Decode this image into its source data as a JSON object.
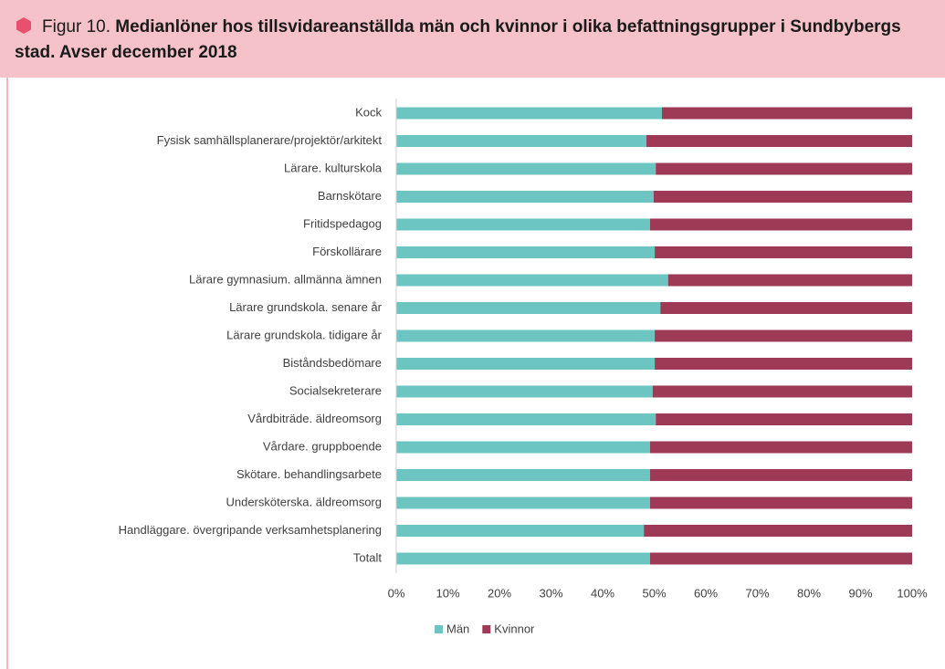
{
  "chart_data": {
    "type": "stacked_barh",
    "label": "Figur 10.",
    "title": "Medianlöner hos tillsvidareanställda män och kvinnor i olika befattningsgrupper i Sundbybergs stad. Avser december 2018",
    "categories": [
      "Kock",
      "Fysisk  samhällsplanerare/projektör/arkitekt",
      "Lärare. kulturskola",
      "Barnskötare",
      "Fritidspedagog",
      "Förskollärare",
      "Lärare gymnasium. allmänna ämnen",
      "Lärare grundskola. senare år",
      "Lärare grundskola. tidigare år",
      "Biståndsbedömare",
      "Socialsekreterare",
      "Vårdbiträde. äldreomsorg",
      "Vårdare. gruppboende",
      "Skötare. behandlingsarbete",
      "Undersköterska. äldreomsorg",
      "Handläggare. övergripande verksamhetsplanering",
      "Totalt"
    ],
    "series": [
      {
        "name": "Män",
        "color": "#6cc5c0",
        "values": [
          51.5,
          48.5,
          50.3,
          49.9,
          49.2,
          50.1,
          52.7,
          51.2,
          50.1,
          50.1,
          49.7,
          50.3,
          49.2,
          49.2,
          49.2,
          48.0,
          49.2
        ]
      },
      {
        "name": "Kvinnor",
        "color": "#9e3a55",
        "values": [
          48.5,
          51.5,
          49.7,
          50.1,
          50.8,
          49.9,
          47.3,
          48.8,
          49.9,
          49.9,
          50.3,
          49.7,
          50.8,
          50.8,
          50.8,
          52.0,
          50.8
        ]
      }
    ],
    "xlim": [
      0,
      100
    ],
    "xticks": [
      {
        "value": 0,
        "label": "0%"
      },
      {
        "value": 10,
        "label": "10%"
      },
      {
        "value": 20,
        "label": "20%"
      },
      {
        "value": 30,
        "label": "30%"
      },
      {
        "value": 40,
        "label": "40%"
      },
      {
        "value": 50,
        "label": "50%"
      },
      {
        "value": 60,
        "label": "60%"
      },
      {
        "value": 70,
        "label": "70%"
      },
      {
        "value": 80,
        "label": "80%"
      },
      {
        "value": 90,
        "label": "90%"
      },
      {
        "value": 100,
        "label": "100%"
      }
    ],
    "legend": "bottom"
  }
}
